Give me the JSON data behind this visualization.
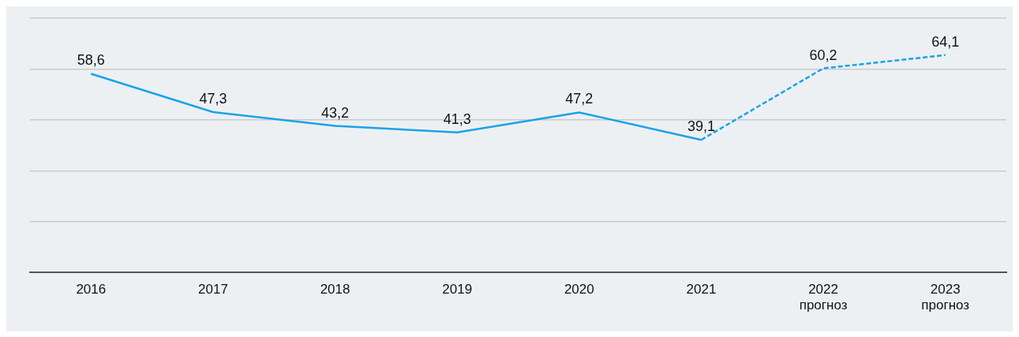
{
  "chart_data": {
    "type": "line",
    "categories": [
      "2016",
      "2017",
      "2018",
      "2019",
      "2020",
      "2021",
      "2022\nпрогноз",
      "2023\nпрогноз"
    ],
    "series": [
      {
        "color": "#1aa3e8",
        "line_style": "solid",
        "values": [
          58.6,
          47.3,
          43.2,
          41.3,
          47.2,
          39.1,
          null,
          null
        ],
        "value_labels": [
          "58,6",
          "47,3",
          "43,2",
          "41,3",
          "47,2",
          "39,1",
          null,
          null
        ]
      },
      {
        "color": "#1aa3e8",
        "line_style": "dashed",
        "values": [
          null,
          null,
          null,
          null,
          null,
          39.1,
          60.2,
          64.1
        ],
        "value_labels": [
          null,
          null,
          null,
          null,
          null,
          null,
          "60,2",
          "64,1"
        ]
      }
    ],
    "ylim": [
      0,
      75
    ],
    "yticks": [
      {
        "value": 0,
        "label": null
      },
      {
        "value": 15,
        "label": null
      },
      {
        "value": 30,
        "label": null
      },
      {
        "value": 45,
        "label": null
      },
      {
        "value": 60,
        "label": null
      },
      {
        "value": 75,
        "label": null
      }
    ],
    "grid": "y",
    "tick_labels": "x",
    "marker": "none",
    "legend": false
  }
}
